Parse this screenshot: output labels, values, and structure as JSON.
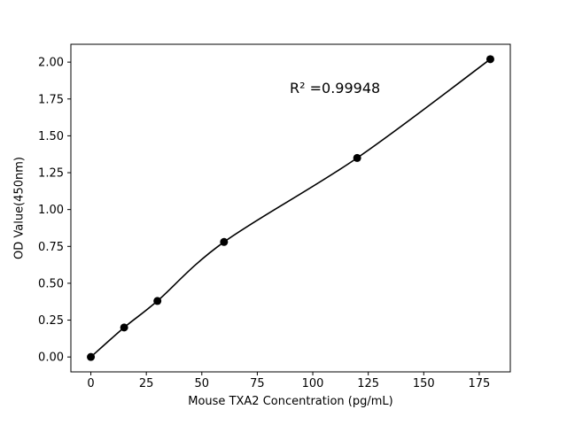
{
  "figure": {
    "background": "#ffffff"
  },
  "chart_data": {
    "type": "scatter",
    "x": [
      0,
      15,
      30,
      60,
      120,
      180
    ],
    "y": [
      0.0,
      0.2,
      0.38,
      0.78,
      1.35,
      2.02
    ],
    "fit_line": true,
    "annotation": "R² =0.99948",
    "title": "",
    "xlabel": "Mouse TXA2 Concentration (pg/mL)",
    "ylabel": "OD Value(450nm)",
    "xticks": [
      0,
      25,
      50,
      75,
      100,
      125,
      150,
      175
    ],
    "yticks": [
      0.0,
      0.25,
      0.5,
      0.75,
      1.0,
      1.25,
      1.5,
      1.75,
      2.0
    ],
    "xlim": [
      -9,
      189
    ],
    "ylim": [
      -0.101,
      2.121
    ],
    "marker_color": "#000000",
    "line_color": "#000000",
    "axis_color": "#000000",
    "grid": false,
    "legend": null
  }
}
